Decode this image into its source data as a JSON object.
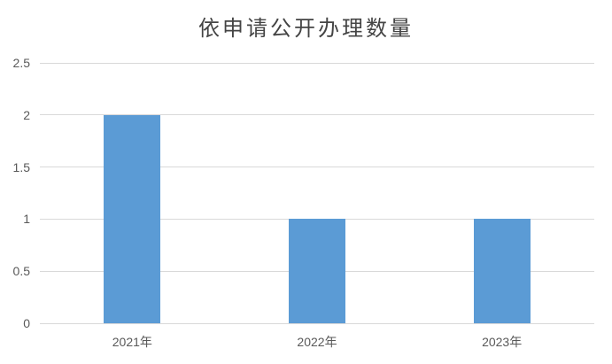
{
  "chart_data": {
    "type": "bar",
    "title": "依申请公开办理数量",
    "categories": [
      "2021年",
      "2022年",
      "2023年"
    ],
    "values": [
      2,
      1,
      1
    ],
    "xlabel": "",
    "ylabel": "",
    "ylim": [
      0,
      2.5
    ],
    "ytick_labels": [
      "0",
      "0.5",
      "1",
      "1.5",
      "2",
      "2.5"
    ],
    "ytick_values": [
      0,
      0.5,
      1,
      1.5,
      2,
      2.5
    ],
    "grid": true,
    "legend": "none",
    "colors": {
      "bar": "#5B9BD5",
      "gridline": "#D9D9D9",
      "axis_line": "#D9D9D9",
      "tick_label": "#595959",
      "title": "#444444",
      "background": "#FFFFFF"
    }
  }
}
